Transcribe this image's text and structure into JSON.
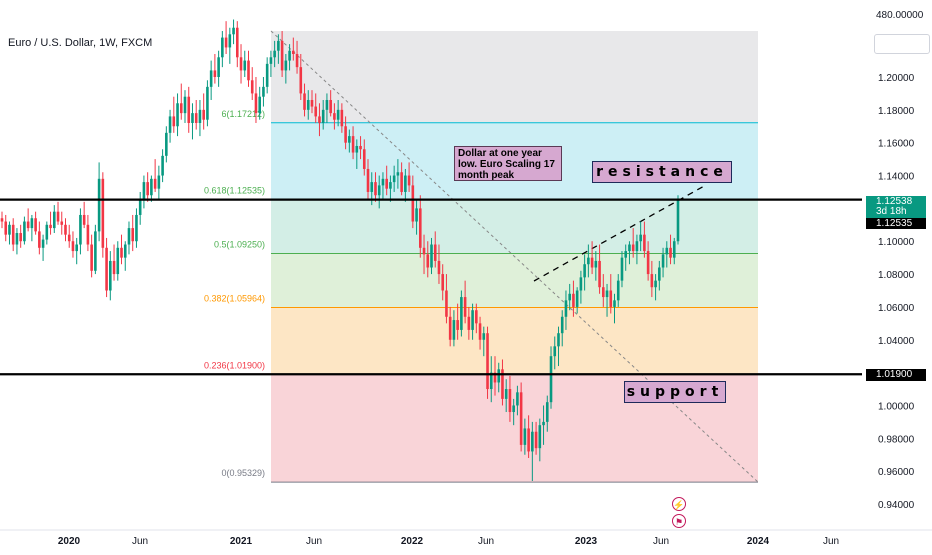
{
  "header": {
    "symbol_title": "Euro / U.S. Dollar, 1W, FXCM"
  },
  "chart_data": {
    "type": "candlestick",
    "title": "Euro / U.S. Dollar, 1W, FXCM",
    "price_axis": {
      "ticks": [
        "1.20000",
        "1.18000",
        "1.16000",
        "1.14000",
        "1.12000",
        "1.10000",
        "1.08000",
        "1.06000",
        "1.04000",
        "1.02000",
        "1.00000",
        "0.98000",
        "0.96000",
        "0.94000"
      ],
      "top_label": "480.00000"
    },
    "time_axis": {
      "ticks": [
        "2020",
        "Jun",
        "2021",
        "Jun",
        "2022",
        "Jun",
        "2023",
        "Jun",
        "2024",
        "Jun"
      ]
    },
    "fibonacci": {
      "levels": [
        {
          "label": "0.618(1.12535)",
          "price": 1.12535,
          "color": "#4caf50"
        },
        {
          "label": "0.5(1.09250)",
          "price": 1.0925,
          "color": "#4caf50"
        },
        {
          "label": "0.382(1.05964)",
          "price": 1.05964,
          "color": "#ff9800"
        },
        {
          "label": "0.236(1.01900)",
          "price": 1.019,
          "color": "#f23645"
        },
        {
          "label": "0(0.95329)",
          "price": 0.95329,
          "color": "#787b86"
        }
      ],
      "top_level_label": "6(1.17212)",
      "top_level_price": 1.17212,
      "zones": [
        {
          "from": 1.17212,
          "to": 1.245,
          "color": "#e8e8ea"
        },
        {
          "from": 1.12535,
          "to": 1.17212,
          "color": "#cdeff5"
        },
        {
          "from": 1.0925,
          "to": 1.12535,
          "color": "#d3eee6"
        },
        {
          "from": 1.05964,
          "to": 1.0925,
          "color": "#dff0d9"
        },
        {
          "from": 1.019,
          "to": 1.05964,
          "color": "#fde6c5"
        },
        {
          "from": 0.95329,
          "to": 1.019,
          "color": "#f9d4d8"
        }
      ]
    },
    "horizontal_lines": [
      {
        "price": 1.12535,
        "label": "1.12535"
      },
      {
        "price": 1.019,
        "label": "1.01900"
      }
    ],
    "last_price": {
      "value": "1.12538",
      "countdown": "3d 18h"
    },
    "annotations": {
      "note": "Dollar at one year low. Euro Scaling 17 month peak",
      "resistance": "resistance",
      "support": "support"
    },
    "candles_ohlc": [
      [
        1.114,
        1.118,
        1.108,
        1.112
      ],
      [
        1.112,
        1.116,
        1.1,
        1.104
      ],
      [
        1.104,
        1.112,
        1.098,
        1.11
      ],
      [
        1.11,
        1.114,
        1.094,
        1.098
      ],
      [
        1.098,
        1.108,
        1.092,
        1.105
      ],
      [
        1.105,
        1.11,
        1.096,
        1.1
      ],
      [
        1.1,
        1.115,
        1.098,
        1.112
      ],
      [
        1.112,
        1.12,
        1.106,
        1.108
      ],
      [
        1.108,
        1.116,
        1.1,
        1.114
      ],
      [
        1.114,
        1.118,
        1.104,
        1.106
      ],
      [
        1.106,
        1.112,
        1.092,
        1.096
      ],
      [
        1.096,
        1.104,
        1.088,
        1.101
      ],
      [
        1.101,
        1.112,
        1.098,
        1.11
      ],
      [
        1.11,
        1.118,
        1.104,
        1.108
      ],
      [
        1.108,
        1.122,
        1.105,
        1.118
      ],
      [
        1.118,
        1.124,
        1.11,
        1.112
      ],
      [
        1.112,
        1.118,
        1.104,
        1.11
      ],
      [
        1.11,
        1.114,
        1.1,
        1.104
      ],
      [
        1.104,
        1.11,
        1.096,
        1.1
      ],
      [
        1.1,
        1.106,
        1.09,
        1.094
      ],
      [
        1.094,
        1.102,
        1.086,
        1.098
      ],
      [
        1.098,
        1.12,
        1.092,
        1.116
      ],
      [
        1.116,
        1.124,
        1.108,
        1.11
      ],
      [
        1.11,
        1.116,
        1.094,
        1.098
      ],
      [
        1.098,
        1.104,
        1.078,
        1.082
      ],
      [
        1.082,
        1.11,
        1.08,
        1.106
      ],
      [
        1.106,
        1.148,
        1.1,
        1.138
      ],
      [
        1.138,
        1.142,
        1.09,
        1.096
      ],
      [
        1.096,
        1.102,
        1.066,
        1.07
      ],
      [
        1.07,
        1.094,
        1.064,
        1.088
      ],
      [
        1.088,
        1.098,
        1.076,
        1.08
      ],
      [
        1.08,
        1.1,
        1.076,
        1.096
      ],
      [
        1.096,
        1.104,
        1.086,
        1.09
      ],
      [
        1.09,
        1.1,
        1.082,
        1.098
      ],
      [
        1.098,
        1.112,
        1.092,
        1.108
      ],
      [
        1.108,
        1.116,
        1.094,
        1.1
      ],
      [
        1.1,
        1.12,
        1.096,
        1.116
      ],
      [
        1.116,
        1.13,
        1.11,
        1.126
      ],
      [
        1.126,
        1.14,
        1.12,
        1.136
      ],
      [
        1.136,
        1.142,
        1.124,
        1.128
      ],
      [
        1.128,
        1.14,
        1.124,
        1.138
      ],
      [
        1.138,
        1.15,
        1.13,
        1.132
      ],
      [
        1.132,
        1.146,
        1.126,
        1.14
      ],
      [
        1.14,
        1.156,
        1.136,
        1.152
      ],
      [
        1.152,
        1.17,
        1.148,
        1.166
      ],
      [
        1.166,
        1.18,
        1.16,
        1.176
      ],
      [
        1.176,
        1.188,
        1.166,
        1.17
      ],
      [
        1.17,
        1.19,
        1.164,
        1.184
      ],
      [
        1.184,
        1.196,
        1.174,
        1.178
      ],
      [
        1.178,
        1.192,
        1.172,
        1.188
      ],
      [
        1.188,
        1.194,
        1.166,
        1.172
      ],
      [
        1.172,
        1.184,
        1.162,
        1.178
      ],
      [
        1.178,
        1.186,
        1.168,
        1.172
      ],
      [
        1.172,
        1.186,
        1.164,
        1.18
      ],
      [
        1.18,
        1.19,
        1.168,
        1.174
      ],
      [
        1.174,
        1.198,
        1.17,
        1.194
      ],
      [
        1.194,
        1.21,
        1.186,
        1.204
      ],
      [
        1.204,
        1.214,
        1.196,
        1.2
      ],
      [
        1.2,
        1.216,
        1.194,
        1.212
      ],
      [
        1.212,
        1.228,
        1.206,
        1.224
      ],
      [
        1.224,
        1.234,
        1.214,
        1.218
      ],
      [
        1.218,
        1.23,
        1.208,
        1.226
      ],
      [
        1.226,
        1.235,
        1.22,
        1.23
      ],
      [
        1.23,
        1.234,
        1.206,
        1.212
      ],
      [
        1.212,
        1.22,
        1.196,
        1.204
      ],
      [
        1.204,
        1.216,
        1.2,
        1.21
      ],
      [
        1.21,
        1.216,
        1.194,
        1.198
      ],
      [
        1.198,
        1.206,
        1.186,
        1.19
      ],
      [
        1.19,
        1.2,
        1.172,
        1.178
      ],
      [
        1.178,
        1.194,
        1.174,
        1.188
      ],
      [
        1.188,
        1.2,
        1.182,
        1.194
      ],
      [
        1.194,
        1.212,
        1.19,
        1.208
      ],
      [
        1.208,
        1.216,
        1.2,
        1.212
      ],
      [
        1.212,
        1.222,
        1.206,
        1.216
      ],
      [
        1.216,
        1.226,
        1.208,
        1.222
      ],
      [
        1.222,
        1.228,
        1.2,
        1.204
      ],
      [
        1.204,
        1.214,
        1.196,
        1.21
      ],
      [
        1.21,
        1.22,
        1.204,
        1.216
      ],
      [
        1.216,
        1.224,
        1.21,
        1.214
      ],
      [
        1.214,
        1.222,
        1.202,
        1.206
      ],
      [
        1.206,
        1.214,
        1.186,
        1.19
      ],
      [
        1.19,
        1.196,
        1.176,
        1.18
      ],
      [
        1.18,
        1.192,
        1.174,
        1.186
      ],
      [
        1.186,
        1.192,
        1.178,
        1.182
      ],
      [
        1.182,
        1.19,
        1.172,
        1.176
      ],
      [
        1.176,
        1.184,
        1.164,
        1.172
      ],
      [
        1.172,
        1.186,
        1.168,
        1.18
      ],
      [
        1.18,
        1.19,
        1.172,
        1.186
      ],
      [
        1.186,
        1.192,
        1.176,
        1.178
      ],
      [
        1.178,
        1.184,
        1.168,
        1.174
      ],
      [
        1.174,
        1.186,
        1.17,
        1.18
      ],
      [
        1.18,
        1.184,
        1.166,
        1.17
      ],
      [
        1.17,
        1.176,
        1.156,
        1.16
      ],
      [
        1.16,
        1.168,
        1.154,
        1.164
      ],
      [
        1.164,
        1.17,
        1.15,
        1.154
      ],
      [
        1.154,
        1.162,
        1.144,
        1.158
      ],
      [
        1.158,
        1.164,
        1.15,
        1.156
      ],
      [
        1.156,
        1.162,
        1.14,
        1.144
      ],
      [
        1.144,
        1.15,
        1.126,
        1.13
      ],
      [
        1.13,
        1.142,
        1.122,
        1.136
      ],
      [
        1.136,
        1.142,
        1.124,
        1.128
      ],
      [
        1.128,
        1.14,
        1.12,
        1.134
      ],
      [
        1.134,
        1.142,
        1.126,
        1.138
      ],
      [
        1.138,
        1.146,
        1.128,
        1.132
      ],
      [
        1.132,
        1.14,
        1.124,
        1.136
      ],
      [
        1.136,
        1.146,
        1.13,
        1.14
      ],
      [
        1.14,
        1.15,
        1.132,
        1.142
      ],
      [
        1.142,
        1.148,
        1.128,
        1.13
      ],
      [
        1.13,
        1.144,
        1.124,
        1.14
      ],
      [
        1.14,
        1.148,
        1.13,
        1.134
      ],
      [
        1.134,
        1.14,
        1.108,
        1.112
      ],
      [
        1.112,
        1.126,
        1.104,
        1.12
      ],
      [
        1.12,
        1.128,
        1.09,
        1.096
      ],
      [
        1.096,
        1.104,
        1.08,
        1.092
      ],
      [
        1.092,
        1.1,
        1.078,
        1.084
      ],
      [
        1.084,
        1.102,
        1.08,
        1.098
      ],
      [
        1.098,
        1.106,
        1.084,
        1.088
      ],
      [
        1.088,
        1.098,
        1.074,
        1.08
      ],
      [
        1.08,
        1.086,
        1.064,
        1.07
      ],
      [
        1.07,
        1.08,
        1.05,
        1.054
      ],
      [
        1.054,
        1.06,
        1.036,
        1.04
      ],
      [
        1.04,
        1.058,
        1.036,
        1.052
      ],
      [
        1.052,
        1.062,
        1.04,
        1.046
      ],
      [
        1.046,
        1.07,
        1.042,
        1.066
      ],
      [
        1.066,
        1.076,
        1.05,
        1.054
      ],
      [
        1.054,
        1.06,
        1.04,
        1.046
      ],
      [
        1.046,
        1.062,
        1.04,
        1.058
      ],
      [
        1.058,
        1.062,
        1.044,
        1.05
      ],
      [
        1.05,
        1.054,
        1.034,
        1.04
      ],
      [
        1.04,
        1.048,
        1.03,
        1.044
      ],
      [
        1.044,
        1.048,
        1.004,
        1.01
      ],
      [
        1.01,
        1.03,
        1.002,
        1.02
      ],
      [
        1.02,
        1.03,
        1.006,
        1.014
      ],
      [
        1.014,
        1.026,
        1.008,
        1.022
      ],
      [
        1.022,
        1.028,
        1.0,
        1.004
      ],
      [
        1.004,
        1.016,
        0.996,
        1.01
      ],
      [
        1.01,
        1.018,
        0.99,
        0.996
      ],
      [
        0.996,
        1.004,
        0.988,
        1.0
      ],
      [
        1.0,
        1.012,
        0.994,
        1.008
      ],
      [
        1.008,
        1.014,
        0.972,
        0.976
      ],
      [
        0.976,
        0.992,
        0.97,
        0.986
      ],
      [
        0.986,
        0.994,
        0.968,
        0.972
      ],
      [
        0.972,
        0.99,
        0.954,
        0.984
      ],
      [
        0.984,
        0.99,
        0.97,
        0.974
      ],
      [
        0.974,
        0.992,
        0.966,
        0.988
      ],
      [
        0.988,
        1.0,
        0.976,
        0.99
      ],
      [
        0.99,
        1.006,
        0.984,
        1.002
      ],
      [
        1.002,
        1.036,
        0.998,
        1.03
      ],
      [
        1.03,
        1.042,
        1.022,
        1.036
      ],
      [
        1.036,
        1.048,
        1.024,
        1.044
      ],
      [
        1.044,
        1.058,
        1.036,
        1.054
      ],
      [
        1.054,
        1.07,
        1.046,
        1.064
      ],
      [
        1.064,
        1.074,
        1.058,
        1.068
      ],
      [
        1.068,
        1.076,
        1.054,
        1.06
      ],
      [
        1.06,
        1.072,
        1.056,
        1.07
      ],
      [
        1.07,
        1.082,
        1.062,
        1.078
      ],
      [
        1.078,
        1.092,
        1.07,
        1.086
      ],
      [
        1.086,
        1.098,
        1.078,
        1.09
      ],
      [
        1.09,
        1.1,
        1.08,
        1.084
      ],
      [
        1.084,
        1.094,
        1.076,
        1.088
      ],
      [
        1.088,
        1.098,
        1.068,
        1.072
      ],
      [
        1.072,
        1.08,
        1.06,
        1.066
      ],
      [
        1.066,
        1.074,
        1.054,
        1.07
      ],
      [
        1.07,
        1.08,
        1.056,
        1.06
      ],
      [
        1.06,
        1.068,
        1.05,
        1.064
      ],
      [
        1.064,
        1.08,
        1.06,
        1.076
      ],
      [
        1.076,
        1.094,
        1.072,
        1.09
      ],
      [
        1.09,
        1.098,
        1.082,
        1.094
      ],
      [
        1.094,
        1.1,
        1.086,
        1.098
      ],
      [
        1.098,
        1.108,
        1.09,
        1.094
      ],
      [
        1.094,
        1.104,
        1.086,
        1.1
      ],
      [
        1.1,
        1.112,
        1.094,
        1.104
      ],
      [
        1.104,
        1.112,
        1.09,
        1.094
      ],
      [
        1.094,
        1.1,
        1.076,
        1.08
      ],
      [
        1.08,
        1.088,
        1.066,
        1.072
      ],
      [
        1.072,
        1.08,
        1.064,
        1.076
      ],
      [
        1.076,
        1.088,
        1.07,
        1.084
      ],
      [
        1.084,
        1.096,
        1.078,
        1.092
      ],
      [
        1.092,
        1.1,
        1.084,
        1.096
      ],
      [
        1.096,
        1.104,
        1.086,
        1.09
      ],
      [
        1.09,
        1.102,
        1.086,
        1.1
      ],
      [
        1.1,
        1.128,
        1.098,
        1.12538
      ]
    ]
  }
}
